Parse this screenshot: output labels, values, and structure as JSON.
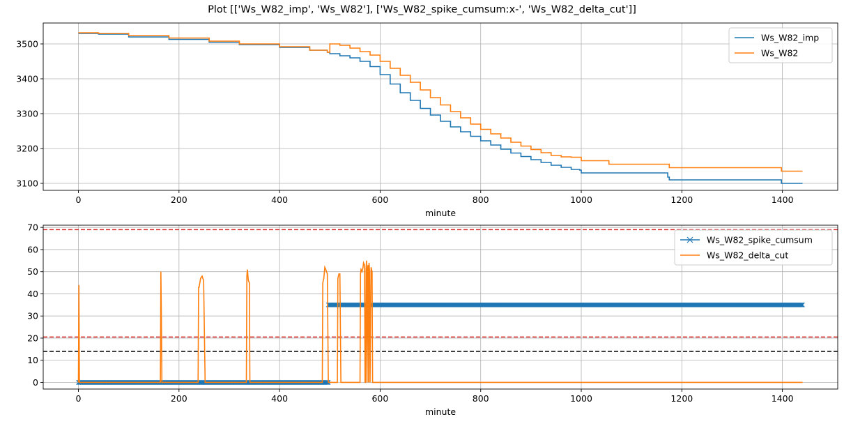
{
  "figure": {
    "title": "Plot [['Ws_W82_imp', 'Ws_W82'], ['Ws_W82_spike_cumsum:x-', 'Ws_W82_delta_cut']]"
  },
  "colors": {
    "blue": "#1f77b4",
    "orange": "#ff7f0e",
    "red": "#d62728",
    "black": "#000000",
    "grid": "#b0b0b0"
  },
  "chart_data": [
    {
      "type": "line",
      "xlabel": "minute",
      "ylabel": "",
      "xlim": [
        -70,
        1510
      ],
      "ylim": [
        3080,
        3560
      ],
      "xticks": [
        0,
        200,
        400,
        600,
        800,
        1000,
        1200,
        1400
      ],
      "yticks": [
        3100,
        3200,
        3300,
        3400,
        3500
      ],
      "grid": true,
      "legend_position": "top-right",
      "series": [
        {
          "name": "Ws_W82_imp",
          "color": "#1f77b4",
          "x": [
            0,
            40,
            100,
            180,
            260,
            320,
            400,
            460,
            495,
            500,
            520,
            540,
            560,
            580,
            600,
            620,
            640,
            660,
            680,
            700,
            720,
            740,
            760,
            780,
            800,
            820,
            840,
            860,
            880,
            900,
            920,
            940,
            960,
            980,
            997,
            1000,
            1055,
            1172,
            1175,
            1395,
            1398,
            1440
          ],
          "y": [
            3530,
            3528,
            3520,
            3513,
            3505,
            3498,
            3490,
            3482,
            3476,
            3472,
            3466,
            3460,
            3450,
            3435,
            3412,
            3385,
            3360,
            3338,
            3315,
            3296,
            3278,
            3262,
            3248,
            3235,
            3222,
            3210,
            3198,
            3187,
            3177,
            3168,
            3160,
            3152,
            3146,
            3140,
            3138,
            3130,
            3130,
            3118,
            3110,
            3110,
            3100,
            3100
          ]
        },
        {
          "name": "Ws_W82",
          "color": "#ff7f0e",
          "x": [
            0,
            40,
            100,
            180,
            260,
            320,
            400,
            460,
            495,
            500,
            520,
            540,
            560,
            580,
            600,
            620,
            640,
            660,
            680,
            700,
            720,
            740,
            760,
            780,
            800,
            820,
            840,
            860,
            880,
            900,
            920,
            940,
            960,
            980,
            997,
            1000,
            1055,
            1172,
            1175,
            1395,
            1398,
            1440
          ],
          "y": [
            3532,
            3530,
            3524,
            3517,
            3508,
            3500,
            3492,
            3482,
            3476,
            3500,
            3496,
            3488,
            3478,
            3468,
            3450,
            3430,
            3410,
            3390,
            3368,
            3346,
            3325,
            3306,
            3288,
            3270,
            3255,
            3242,
            3230,
            3218,
            3207,
            3197,
            3188,
            3180,
            3176,
            3175,
            3175,
            3165,
            3155,
            3155,
            3145,
            3145,
            3135,
            3135
          ]
        }
      ]
    },
    {
      "type": "line",
      "xlabel": "minute",
      "ylabel": "",
      "xlim": [
        -70,
        1510
      ],
      "ylim": [
        -3,
        71
      ],
      "xticks": [
        0,
        200,
        400,
        600,
        800,
        1000,
        1200,
        1400
      ],
      "yticks": [
        0,
        10,
        20,
        30,
        40,
        50,
        60,
        70
      ],
      "grid": true,
      "legend_position": "top-right",
      "hlines": [
        {
          "y": 69,
          "color": "#d62728",
          "style": "dashed"
        },
        {
          "y": 20.5,
          "color": "#d62728",
          "style": "dashed"
        },
        {
          "y": 14,
          "color": "#000000",
          "style": "dashed"
        }
      ],
      "series": [
        {
          "name": "Ws_W82_spike_cumsum",
          "color": "#1f77b4",
          "marker": "x",
          "segments": [
            {
              "x_start": 0,
              "x_end": 497,
              "y": 0
            },
            {
              "x_start": 497,
              "x_end": 1440,
              "y": 35
            }
          ]
        },
        {
          "name": "Ws_W82_delta_cut",
          "color": "#ff7f0e",
          "x": [
            0,
            1,
            2,
            3,
            163,
            164,
            165,
            166,
            167,
            238,
            239,
            240,
            243,
            246,
            249,
            252,
            253,
            254,
            255,
            334,
            335,
            336,
            338,
            340,
            341,
            342,
            343,
            485,
            486,
            487,
            488,
            490,
            492,
            495,
            497,
            498,
            499,
            500,
            515,
            516,
            518,
            520,
            522,
            523,
            524,
            560,
            561,
            562,
            564,
            566,
            567,
            569,
            570,
            571,
            572,
            573,
            574,
            575,
            576,
            577,
            578,
            579,
            580,
            582,
            584,
            585,
            586,
            1440
          ],
          "y": [
            0,
            44,
            0,
            0,
            0,
            50,
            30,
            0,
            0,
            0,
            43,
            43,
            47,
            48,
            46,
            0,
            0,
            0,
            0,
            0,
            48,
            51,
            46,
            45,
            0,
            0,
            0,
            0,
            45,
            46,
            47,
            52,
            51,
            49,
            0,
            0,
            0,
            0,
            0,
            47,
            49,
            49,
            0,
            0,
            0,
            0,
            49,
            51,
            50,
            52,
            54,
            53,
            0,
            0,
            51,
            55,
            0,
            51,
            53,
            0,
            54,
            50,
            0,
            52,
            50,
            0,
            0,
            0
          ]
        }
      ]
    }
  ]
}
